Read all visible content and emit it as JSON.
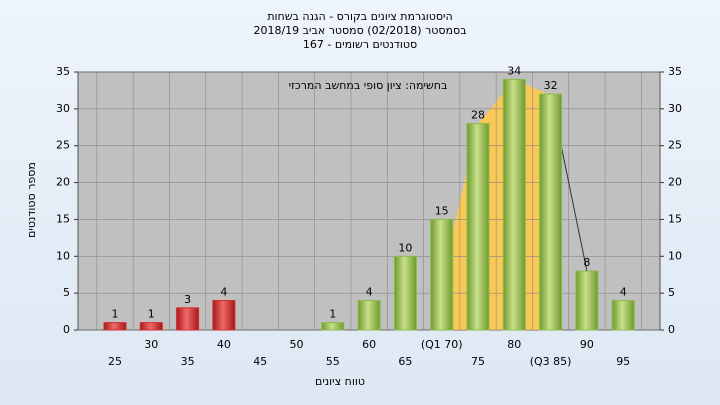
{
  "chart_data": {
    "type": "bar",
    "title": [
      "היסטוגרמת ציונים בקורס - הגנה בשחות",
      "בסמסטר  (02/2018)  סמסטר אביב 2018/19",
      "סטודנטים רשומים - 167"
    ],
    "annotation": "בחשימה: ציון סופי במחשב המרכזי",
    "x_label": "טווח ציונים",
    "y_label": "מספר סטודנטים",
    "categories": [
      "25",
      "30",
      "35",
      "40",
      "45",
      "50",
      "55",
      "60",
      "65",
      "(Q1 70)",
      "75",
      "80",
      "(Q3 85)",
      "90",
      "95"
    ],
    "values": [
      1,
      1,
      3,
      4,
      null,
      null,
      1,
      4,
      10,
      15,
      28,
      34,
      32,
      8,
      4
    ],
    "colors": [
      "#d42a2a",
      "#d42a2a",
      "#d42a2a",
      "#d42a2a",
      "#d42a2a",
      "#d42a2a",
      "#8dba4a",
      "#8dba4a",
      "#8dba4a",
      "#8dba4a",
      "#8dba4a",
      "#8dba4a",
      "#8dba4a",
      "#8dba4a",
      "#8dba4a"
    ],
    "ylim": [
      0,
      35
    ],
    "yticks": [
      0,
      5,
      10,
      15,
      20,
      25,
      30,
      35
    ],
    "grid": true
  }
}
